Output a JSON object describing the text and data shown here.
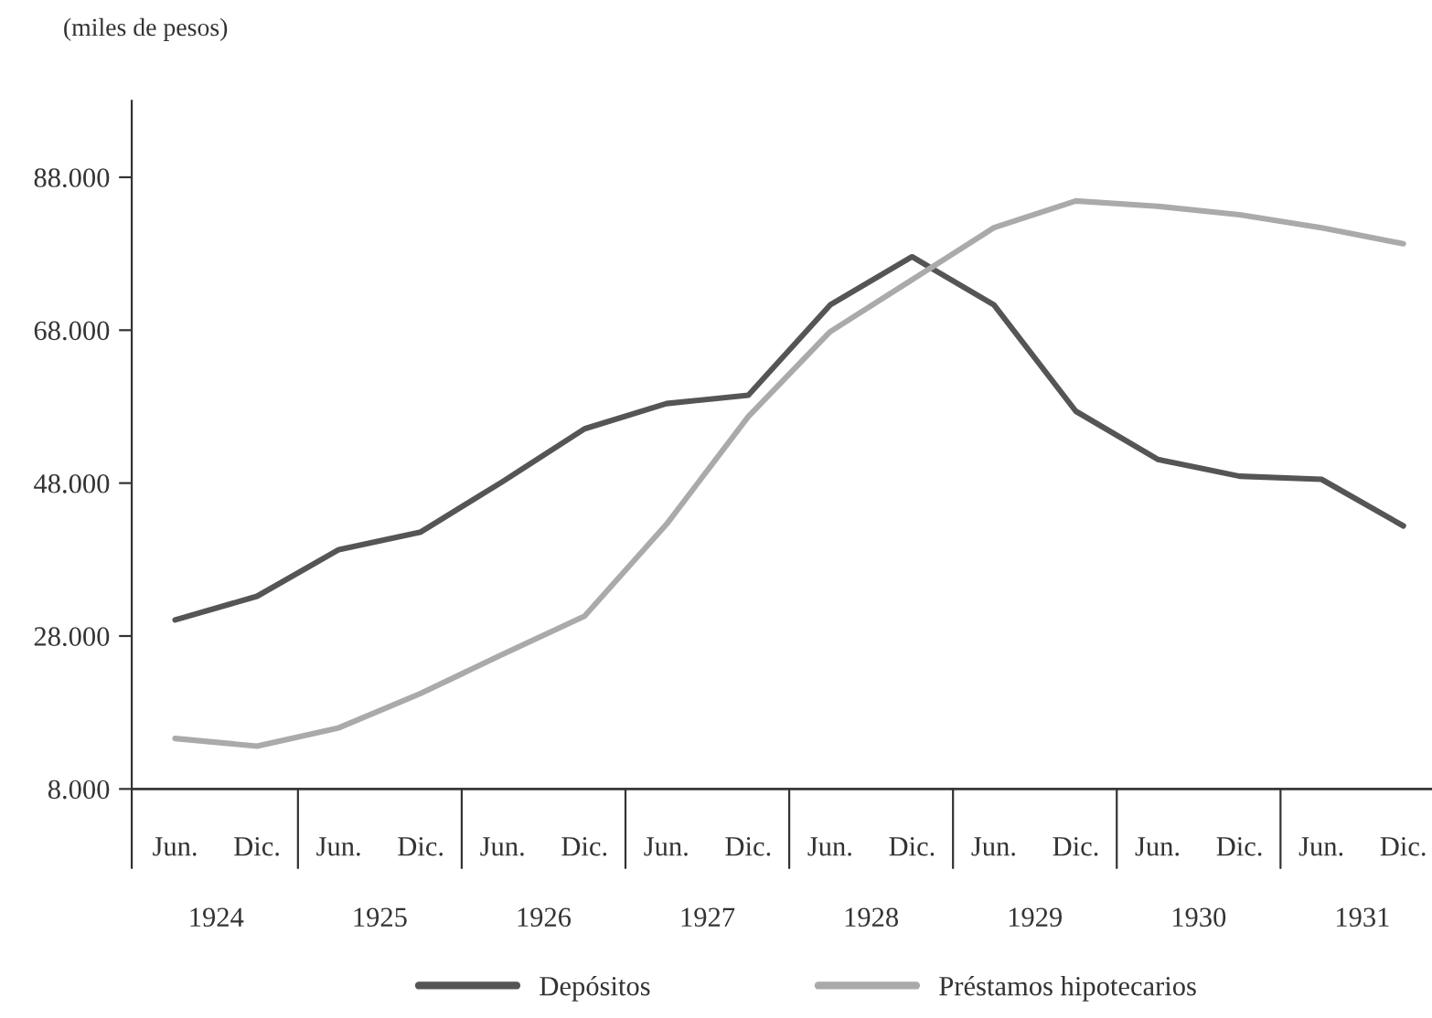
{
  "chart_data": {
    "type": "line",
    "ylabel": "(miles de pesos)",
    "categories": [
      "Jun.",
      "Dic.",
      "Jun.",
      "Dic.",
      "Jun.",
      "Dic.",
      "Jun.",
      "Dic.",
      "Jun.",
      "Dic.",
      "Jun.",
      "Dic.",
      "Jun.",
      "Dic.",
      "Jun.",
      "Dic."
    ],
    "annotations": [
      "1924",
      "1925",
      "1926",
      "1927",
      "1928",
      "1929",
      "1930",
      "1931"
    ],
    "series": [
      {
        "name": "Depósitos",
        "color": "#555555",
        "values": [
          30100,
          33200,
          39300,
          41600,
          48200,
          55100,
          58400,
          59500,
          71300,
          77600,
          71300,
          57400,
          51100,
          48900,
          48500,
          42400
        ]
      },
      {
        "name": "Préstamos hipotecarios",
        "color": "#aaaaaa",
        "values": [
          14600,
          13600,
          16000,
          20500,
          25600,
          30600,
          42600,
          56700,
          67800,
          74600,
          81400,
          84900,
          84200,
          83100,
          81400,
          79300
        ]
      }
    ],
    "ylim": [
      8000,
      98000
    ],
    "yticks": [
      {
        "value": 8000,
        "label": "8.000"
      },
      {
        "value": 28000,
        "label": "28.000"
      },
      {
        "value": 48000,
        "label": "48.000"
      },
      {
        "value": 68000,
        "label": "68.000"
      },
      {
        "value": 88000,
        "label": "88.000"
      }
    ],
    "grid": false,
    "legend": "bottom",
    "marker": "none",
    "line_style": "solid"
  }
}
